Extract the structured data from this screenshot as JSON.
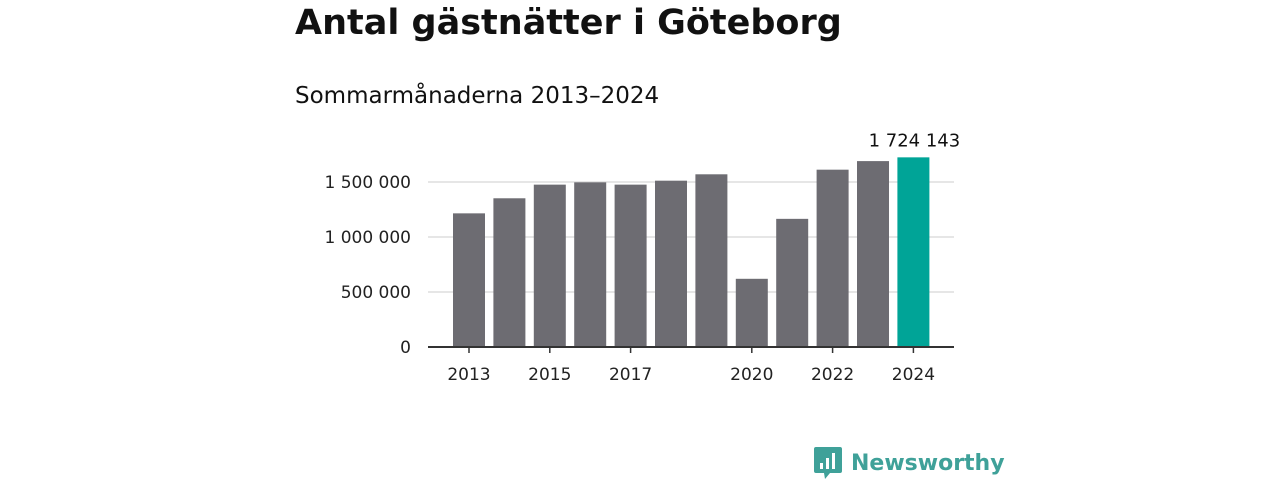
{
  "title": "Antal gästnätter i Göteborg",
  "subtitle": "Sommarmånaderna 2013–2024",
  "logo": {
    "text": "Newsworthy",
    "icon": "newsworthy-logo-icon",
    "color": "#3fa199"
  },
  "chart_data": {
    "type": "bar",
    "categories": [
      "2013",
      "2014",
      "2015",
      "2016",
      "2017",
      "2018",
      "2019",
      "2020",
      "2021",
      "2022",
      "2023",
      "2024"
    ],
    "values": [
      1215000,
      1352000,
      1476000,
      1497000,
      1476000,
      1512000,
      1570000,
      620000,
      1165000,
      1612000,
      1690000,
      1724143
    ],
    "x_tick_labels": [
      "2013",
      "2015",
      "2017",
      "2020",
      "2022",
      "2024"
    ],
    "y_ticks": [
      0,
      500000,
      1000000,
      1500000
    ],
    "y_tick_labels": [
      "0",
      "500 000",
      "1 000 000",
      "1 500 000"
    ],
    "ylim": [
      0,
      1800000
    ],
    "grid": true,
    "highlight": {
      "category": "2024",
      "label": "1 724 143"
    },
    "colors": {
      "bar": "#6d6c72",
      "highlight": "#00a497",
      "grid": "#dddddd",
      "axis": "#333333"
    },
    "xlabel": "",
    "ylabel": ""
  }
}
